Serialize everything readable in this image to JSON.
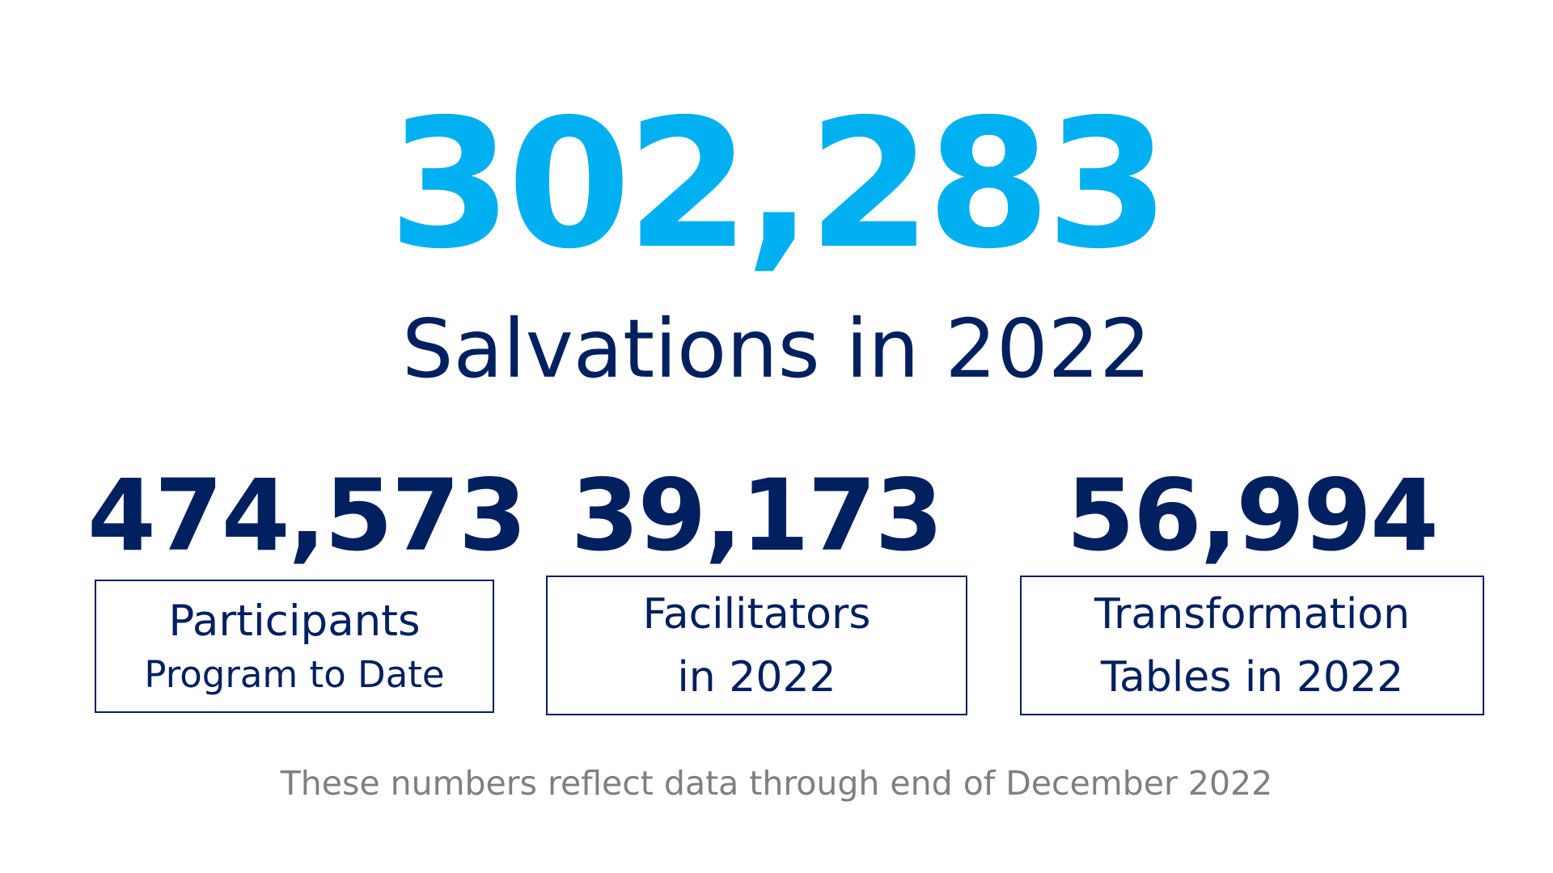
{
  "hero": {
    "value": "302,283",
    "label": "Salvations in 2022"
  },
  "stats": [
    {
      "value": "474,573",
      "label_line1": "Participants",
      "label_line2": "Program to Date"
    },
    {
      "value": "39,173",
      "label_line1": "Facilitators",
      "label_line2": "in 2022"
    },
    {
      "value": "56,994",
      "label_line1": "Transformation",
      "label_line2": "Tables in 2022"
    }
  ],
  "footnote": "These numbers reflect data through end of December 2022",
  "colors": {
    "hero_accent": "#00b0f0",
    "primary_navy": "#002060",
    "footnote_gray": "#7f7f7f"
  }
}
